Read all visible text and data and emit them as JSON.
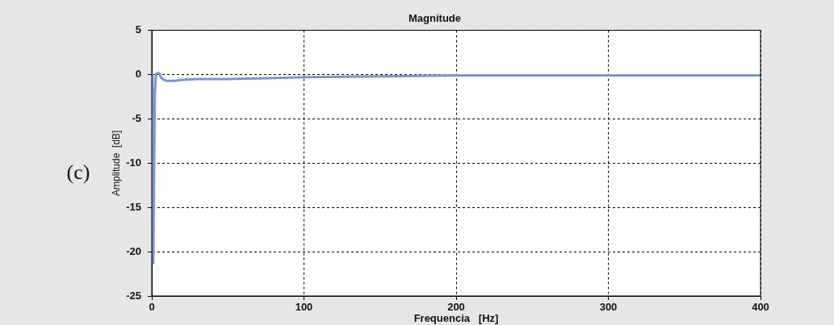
{
  "chart_data": {
    "type": "line",
    "title": "Magnitude",
    "xlabel": "Frequencia   [Hz]",
    "ylabel": "Amplitude  [dB]",
    "annotations": [
      "(c)"
    ],
    "x": [
      0,
      0.5,
      1,
      1.5,
      2,
      2.5,
      3,
      4,
      5,
      6,
      8,
      10,
      12,
      15,
      20,
      30,
      50,
      75,
      100,
      150,
      200,
      250,
      300,
      350,
      400
    ],
    "series": [
      {
        "color": "#7b96d6",
        "values": [
          0,
          -0.5,
          -21.3,
          -11.3,
          -2.3,
          -0.5,
          0.1,
          0.2,
          0.1,
          -0.3,
          -0.6,
          -0.7,
          -0.7,
          -0.7,
          -0.6,
          -0.5,
          -0.5,
          -0.4,
          -0.3,
          -0.2,
          -0.1,
          -0.1,
          -0.1,
          -0.1,
          -0.1
        ]
      }
    ],
    "xlim": [
      0,
      400
    ],
    "xticks": [
      0,
      100,
      200,
      300,
      400
    ],
    "ylim": [
      -25,
      5
    ],
    "yticks": [
      -25,
      -20,
      -15,
      -10,
      -5,
      0,
      5
    ],
    "grid": true,
    "legend": false,
    "marker": "none",
    "line_style": "solid"
  }
}
